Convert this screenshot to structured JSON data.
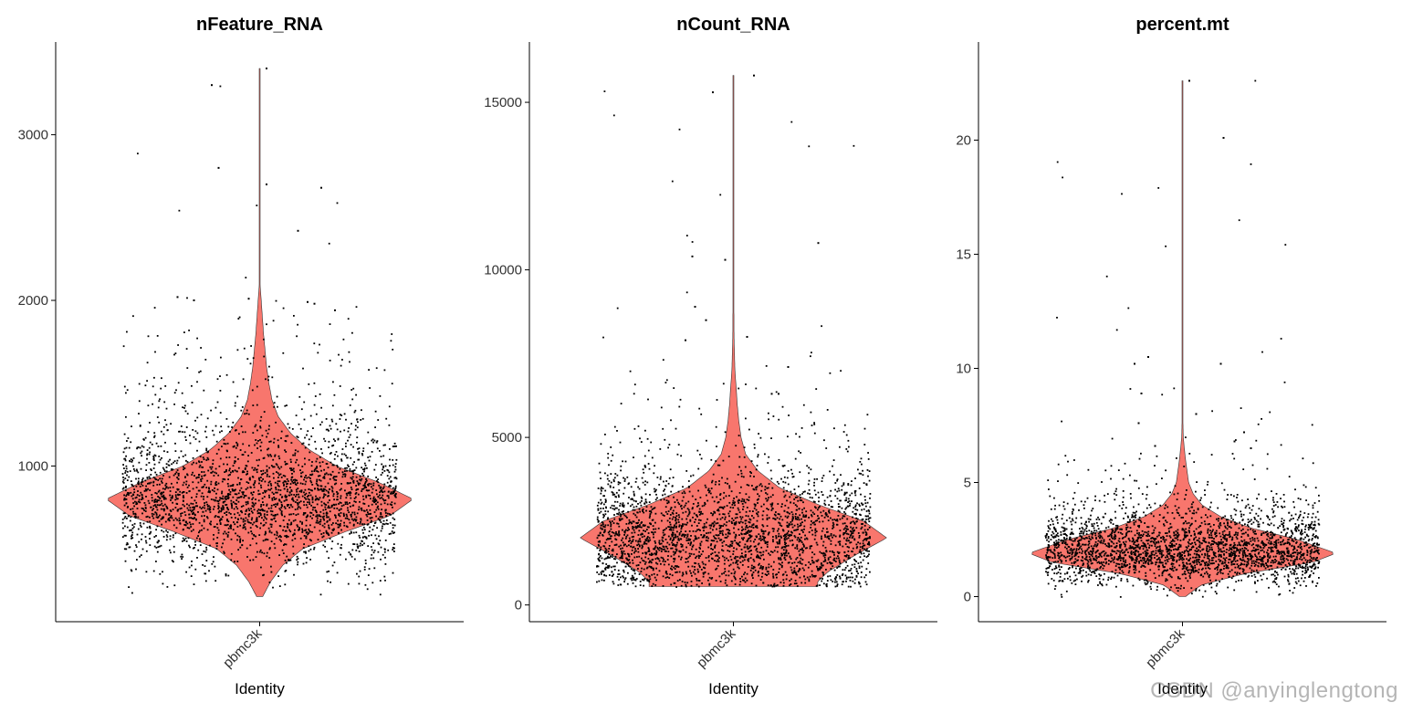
{
  "colors": {
    "violin_fill": "#F8766D",
    "violin_stroke": "#333333",
    "point": "#000000",
    "axis": "#000000"
  },
  "watermark": "CSDN @anyinglengtong",
  "chart_data": [
    {
      "type": "violin",
      "title": "nFeature_RNA",
      "xlabel": "Identity",
      "ylabel": "",
      "categories": [
        "pbmc3k"
      ],
      "yticks": [
        1000,
        2000,
        3000
      ],
      "ylim": [
        60,
        3560
      ],
      "summary": {
        "min": 212,
        "median": 820,
        "mode": 820,
        "max": 3400,
        "n_points": 2700
      },
      "profile": [
        [
          212,
          0.02
        ],
        [
          300,
          0.07
        ],
        [
          400,
          0.15
        ],
        [
          500,
          0.28
        ],
        [
          600,
          0.55
        ],
        [
          700,
          0.85
        ],
        [
          800,
          1.0
        ],
        [
          900,
          0.78
        ],
        [
          1000,
          0.5
        ],
        [
          1100,
          0.32
        ],
        [
          1200,
          0.2
        ],
        [
          1300,
          0.12
        ],
        [
          1400,
          0.08
        ],
        [
          1500,
          0.06
        ],
        [
          1600,
          0.045
        ],
        [
          1800,
          0.025
        ],
        [
          2000,
          0.01
        ],
        [
          2100,
          0.002
        ],
        [
          2500,
          0.001
        ],
        [
          3400,
          0.001
        ]
      ],
      "outliers": [
        [
          3300,
          -0.35
        ],
        [
          3400,
          0.05
        ],
        [
          2800,
          -0.3
        ],
        [
          2700,
          0.05
        ],
        [
          2680,
          0.45
        ],
        [
          2420,
          0.28
        ],
        [
          2020,
          -0.6
        ],
        [
          2000,
          -0.48
        ],
        [
          2010,
          -0.08
        ],
        [
          1990,
          0.35
        ],
        [
          1980,
          0.4
        ],
        [
          1940,
          0.55
        ]
      ]
    },
    {
      "type": "violin",
      "title": "nCount_RNA",
      "xlabel": "Identity",
      "ylabel": "",
      "categories": [
        "pbmc3k"
      ],
      "yticks": [
        0,
        5000,
        10000,
        15000
      ],
      "ylim": [
        -500,
        16800
      ],
      "summary": {
        "min": 550,
        "median": 2200,
        "mode": 2100,
        "max": 15800,
        "n_points": 2700
      },
      "profile": [
        [
          550,
          0.55
        ],
        [
          700,
          0.55
        ],
        [
          1000,
          0.62
        ],
        [
          1500,
          0.8
        ],
        [
          2000,
          1.0
        ],
        [
          2500,
          0.85
        ],
        [
          3000,
          0.55
        ],
        [
          3500,
          0.3
        ],
        [
          4000,
          0.16
        ],
        [
          4500,
          0.08
        ],
        [
          5000,
          0.05
        ],
        [
          5500,
          0.035
        ],
        [
          6000,
          0.025
        ],
        [
          6500,
          0.018
        ],
        [
          7000,
          0.01
        ],
        [
          8000,
          0.004
        ],
        [
          10000,
          0.002
        ],
        [
          15800,
          0.001
        ]
      ],
      "outliers": [
        [
          15800,
          0.15
        ],
        [
          15300,
          -0.15
        ],
        [
          10400,
          -0.3
        ],
        [
          10300,
          -0.06
        ],
        [
          10800,
          0.62
        ],
        [
          8900,
          -0.28
        ],
        [
          8500,
          -0.2
        ],
        [
          8000,
          0.1
        ],
        [
          7100,
          0.4
        ],
        [
          7900,
          -0.35
        ],
        [
          6300,
          0.28
        ],
        [
          6300,
          0.33
        ]
      ]
    },
    {
      "type": "violin",
      "title": "percent.mt",
      "xlabel": "Identity",
      "ylabel": "",
      "categories": [
        "pbmc3k"
      ],
      "yticks": [
        0,
        5,
        10,
        15,
        20
      ],
      "ylim": [
        -1.1,
        24.3
      ],
      "summary": {
        "min": 0.0,
        "median": 1.9,
        "mode": 1.85,
        "max": 22.6,
        "n_points": 2700
      },
      "profile": [
        [
          0.0,
          0.02
        ],
        [
          0.5,
          0.12
        ],
        [
          1.0,
          0.4
        ],
        [
          1.5,
          0.85
        ],
        [
          1.9,
          1.0
        ],
        [
          2.5,
          0.75
        ],
        [
          3.0,
          0.45
        ],
        [
          3.5,
          0.25
        ],
        [
          4.0,
          0.13
        ],
        [
          4.5,
          0.07
        ],
        [
          5.0,
          0.04
        ],
        [
          5.5,
          0.03
        ],
        [
          6.0,
          0.02
        ],
        [
          6.5,
          0.012
        ],
        [
          7.0,
          0.005
        ],
        [
          8.0,
          0.002
        ],
        [
          10.0,
          0.001
        ],
        [
          22.6,
          0.001
        ]
      ],
      "outliers": [
        [
          22.6,
          0.05
        ],
        [
          20.1,
          0.3
        ],
        [
          10.5,
          -0.25
        ],
        [
          10.2,
          -0.35
        ],
        [
          10.2,
          0.28
        ],
        [
          8.9,
          -0.3
        ],
        [
          8.0,
          0.1
        ],
        [
          7.6,
          -0.32
        ],
        [
          7.2,
          0.45
        ],
        [
          6.8,
          0.38
        ],
        [
          6.6,
          -0.2
        ],
        [
          6.5,
          0.5
        ]
      ]
    }
  ]
}
